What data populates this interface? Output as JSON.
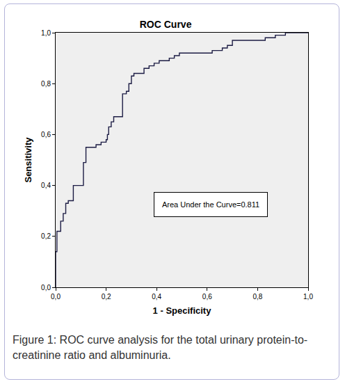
{
  "chart_data": {
    "type": "line",
    "title": "ROC Curve",
    "x_label": "1 - Specificity",
    "y_label": "Sensitivity",
    "caption": "Figure 1: ROC curve analysis for the total urinary protein-to-creatinine ratio and albuminuria.",
    "annotations": [
      "Area Under the Curve=0.811"
    ],
    "x": [
      0,
      0,
      0.005,
      0.02,
      0.03,
      0.04,
      0.05,
      0.07,
      0.11,
      0.12,
      0.16,
      0.18,
      0.2,
      0.205,
      0.21,
      0.22,
      0.23,
      0.265,
      0.28,
      0.29,
      0.3,
      0.31,
      0.35,
      0.37,
      0.39,
      0.41,
      0.45,
      0.47,
      0.49,
      0.62,
      0.66,
      0.68,
      0.7,
      0.83,
      0.87,
      0.91,
      1.0
    ],
    "y": [
      0,
      0.14,
      0.22,
      0.26,
      0.29,
      0.33,
      0.34,
      0.4,
      0.49,
      0.55,
      0.56,
      0.57,
      0.58,
      0.6,
      0.63,
      0.65,
      0.67,
      0.76,
      0.77,
      0.8,
      0.83,
      0.84,
      0.86,
      0.87,
      0.88,
      0.89,
      0.9,
      0.91,
      0.92,
      0.93,
      0.94,
      0.95,
      0.97,
      0.98,
      0.99,
      1.0,
      1.0
    ],
    "color": "#1c1c44",
    "line_style": "step",
    "xlim": [
      0,
      1
    ],
    "ylim": [
      0,
      1
    ],
    "xticks": [
      {
        "value": 0,
        "label": "0,0"
      },
      {
        "value": 0.2,
        "label": "0,2"
      },
      {
        "value": 0.4,
        "label": "0,4"
      },
      {
        "value": 0.6,
        "label": "0,6"
      },
      {
        "value": 0.8,
        "label": "0,8"
      },
      {
        "value": 1,
        "label": "1,0"
      }
    ],
    "yticks": [
      {
        "value": 0,
        "label": "0,0"
      },
      {
        "value": 0.2,
        "label": "0,2"
      },
      {
        "value": 0.4,
        "label": "0,4"
      },
      {
        "value": 0.6,
        "label": "0,6"
      },
      {
        "value": 0.8,
        "label": "0,8"
      },
      {
        "value": 1,
        "label": "1,0"
      }
    ],
    "grid": false
  }
}
